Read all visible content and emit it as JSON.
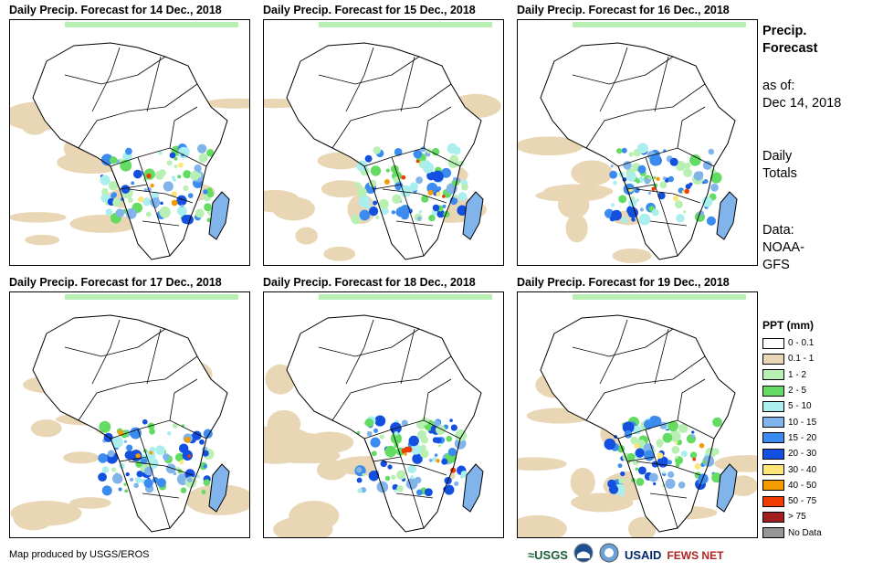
{
  "panels": [
    {
      "title": "Daily Precip. Forecast for 14 Dec., 2018"
    },
    {
      "title": "Daily Precip. Forecast for 15 Dec., 2018"
    },
    {
      "title": "Daily Precip. Forecast for 16 Dec., 2018"
    },
    {
      "title": "Daily Precip. Forecast for 17 Dec., 2018"
    },
    {
      "title": "Daily Precip. Forecast for 18 Dec., 2018"
    },
    {
      "title": "Daily Precip. Forecast for 19 Dec., 2018"
    }
  ],
  "side": {
    "title_line1": "Precip.",
    "title_line2": "Forecast",
    "asof_label": "as of:",
    "asof_date": "Dec 14, 2018",
    "totals_line1": "Daily",
    "totals_line2": "Totals",
    "data_label": "Data:",
    "data_source_line1": "NOAA-",
    "data_source_line2": "GFS"
  },
  "legend": {
    "title": "PPT (mm)",
    "items": [
      {
        "label": "0 - 0.1",
        "color": "#ffffff"
      },
      {
        "label": "0.1 - 1",
        "color": "#e8d6b4"
      },
      {
        "label": "1 - 2",
        "color": "#b8f0b4"
      },
      {
        "label": "2 - 5",
        "color": "#64dc64"
      },
      {
        "label": "5 - 10",
        "color": "#aaeeee"
      },
      {
        "label": "10 - 15",
        "color": "#82b4ec"
      },
      {
        "label": "15 - 20",
        "color": "#3c8cf0"
      },
      {
        "label": "20 - 30",
        "color": "#1450e0"
      },
      {
        "label": "30 - 40",
        "color": "#ffe678"
      },
      {
        "label": "40 - 50",
        "color": "#f59a00"
      },
      {
        "label": "50 - 75",
        "color": "#f03c00"
      },
      {
        "label": "> 75",
        "color": "#a01e1e"
      },
      {
        "label": "No Data",
        "color": "#969696"
      }
    ]
  },
  "footer": {
    "credit": "Map produced by USGS/EROS"
  },
  "logos": {
    "usgs": "USGS",
    "noaa": "NOAA",
    "usaid": "USAID",
    "fews": "FEWS NET"
  }
}
